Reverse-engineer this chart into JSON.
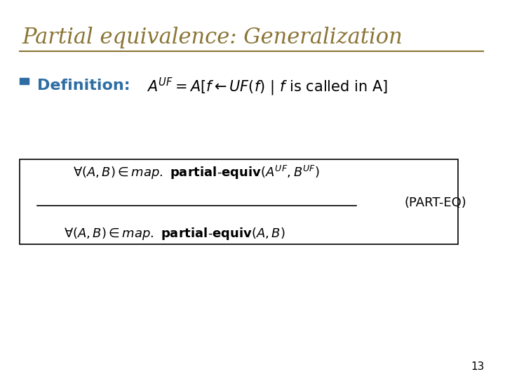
{
  "title": "Partial equivalence: Generalization",
  "title_color": "#8B7536",
  "title_fontsize": 22,
  "bg_color": "#FFFFFF",
  "rule_color": "#8B7536",
  "bullet_color": "#2E6DA4",
  "definition_label": "Definition:",
  "definition_label_color": "#2E6DA4",
  "definition_label_fontsize": 16,
  "math_color": "#000000",
  "math_fontsize": 15,
  "box_line_color": "#000000",
  "part_eq_color": "#000000",
  "slide_number": "13",
  "slide_number_color": "#000000",
  "slide_number_fontsize": 11
}
